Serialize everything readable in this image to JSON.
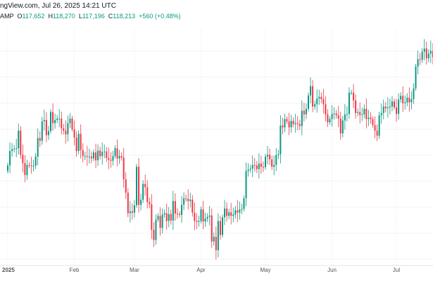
{
  "header": {
    "source": "ngView.com, Jul 26, 2025 14:21 UTC",
    "symbol": "AMP",
    "open_label": "O",
    "open": "117,652",
    "high_label": "H",
    "high": "118,270",
    "low_label": "L",
    "low": "117,196",
    "close_label": "C",
    "close": "118,213",
    "change": "+560 (+0.48%)"
  },
  "colors": {
    "up": "#089981",
    "down": "#f23645"
  },
  "chart_data": {
    "type": "candlestick",
    "start_date": "2025-01-01",
    "interval": "1 day",
    "price_unit": "thousand USD",
    "x_tick_labels": [
      {
        "label": "2025",
        "date": "2025-01-01"
      },
      {
        "label": "Feb",
        "date": "2025-02-01"
      },
      {
        "label": "Mar",
        "date": "2025-03-01"
      },
      {
        "label": "Apr",
        "date": "2025-04-01"
      },
      {
        "label": "May",
        "date": "2025-05-01"
      },
      {
        "label": "Jun",
        "date": "2025-06-01"
      },
      {
        "label": "Jul",
        "date": "2025-07-01"
      }
    ],
    "first_open": 93.4,
    "closes": [
      94.6,
      97.7,
      98.1,
      98.2,
      98.3,
      102.1,
      96.9,
      95.1,
      92.5,
      94.7,
      94.6,
      94.5,
      94.5,
      96.5,
      100.5,
      99.9,
      104.1,
      104.4,
      101.1,
      102.0,
      106.1,
      103.7,
      104.4,
      104.7,
      104.7,
      102.6,
      102.1,
      101.3,
      103.7,
      104.7,
      102.4,
      100.6,
      97.7,
      101.4,
      97.9,
      96.6,
      96.6,
      96.5,
      96.5,
      96.1,
      97.4,
      95.7,
      97.8,
      96.6,
      97.5,
      97.6,
      96.2,
      95.8,
      95.6,
      96.6,
      98.3,
      96.1,
      96.6,
      96.3,
      91.6,
      88.7,
      84.3,
      84.7,
      84.4,
      86.0,
      94.3,
      86.1,
      87.2,
      90.6,
      89.9,
      86.7,
      86.2,
      80.7,
      78.5,
      82.9,
      83.7,
      81.1,
      84.0,
      84.3,
      82.6,
      84.1,
      82.7,
      86.9,
      84.2,
      84.1,
      83.9,
      86.1,
      87.5,
      87.4,
      86.9,
      87.2,
      84.4,
      82.6,
      82.4,
      82.6,
      85.1,
      82.5,
      83.1,
      83.5,
      83.8,
      78.2,
      79.2,
      76.3,
      82.6,
      79.6,
      83.4,
      85.3,
      83.7,
      84.5,
      83.7,
      84.0,
      84.9,
      84.4,
      85.1,
      85.2,
      87.5,
      93.4,
      93.7,
      93.9,
      94.7,
      94.6,
      93.8,
      95.0,
      94.3,
      94.2,
      96.5,
      96.9,
      95.9,
      94.3,
      94.7,
      96.8,
      97.0,
      103.2,
      102.8,
      104.6,
      104.1,
      102.8,
      104.2,
      103.5,
      103.7,
      103.5,
      103.1,
      106.4,
      105.6,
      106.8,
      109.7,
      111.7,
      107.3,
      107.8,
      109.0,
      109.4,
      108.9,
      107.8,
      105.6,
      103.9,
      104.6,
      105.7,
      105.8,
      105.4,
      104.7,
      101.5,
      104.3,
      105.6,
      105.7,
      110.3,
      110.3,
      108.6,
      105.9,
      106.1,
      105.5,
      105.6,
      106.8,
      104.6,
      104.9,
      104.6,
      103.3,
      102.1,
      101.0,
      105.4,
      105.9,
      107.3,
      106.9,
      107.1,
      107.3,
      108.4,
      107.1,
      105.7,
      108.8,
      109.6,
      108.0,
      108.2,
      109.2,
      108.2,
      108.9,
      111.2,
      115.9,
      117.5,
      117.4,
      119.1,
      119.8,
      117.7,
      118.7,
      119.3,
      117.9,
      117.9,
      117.3,
      117.4,
      118.8,
      118.3,
      118.4,
      117.6,
      118.2
    ],
    "grid": true
  }
}
